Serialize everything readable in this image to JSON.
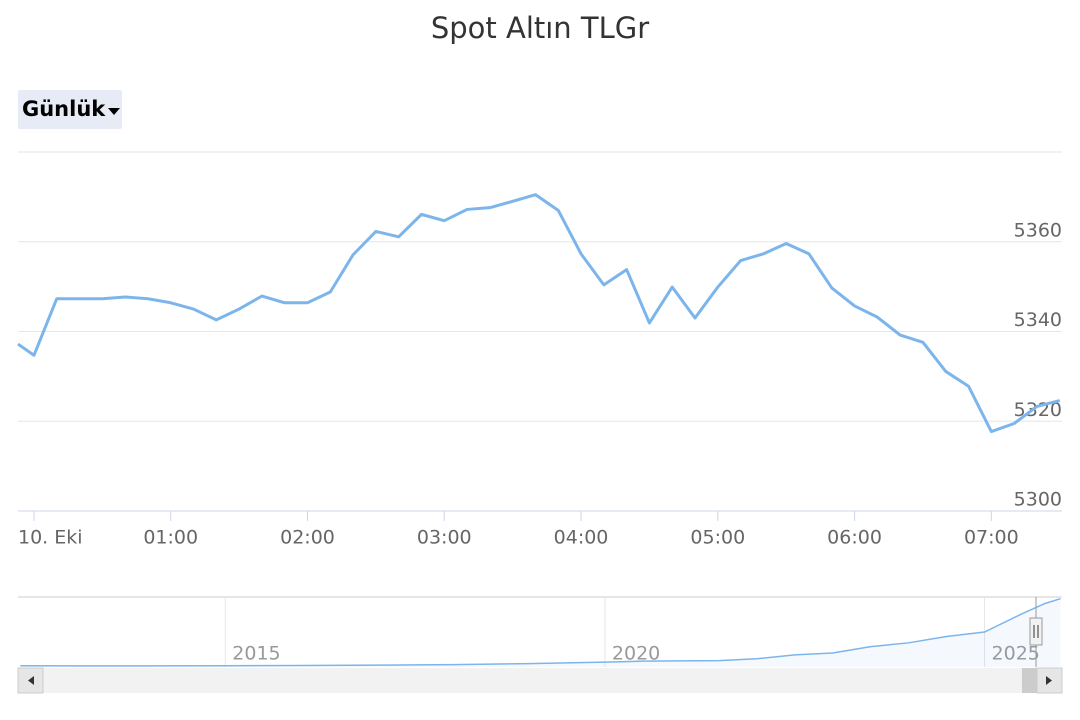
{
  "controls": {
    "period": "Günlük"
  },
  "chart_data": {
    "type": "line",
    "title": "Spot Altın TLGr",
    "x": [
      -7,
      0,
      10,
      20,
      30,
      40,
      50,
      60,
      70,
      80,
      90,
      100,
      110,
      120,
      130,
      140,
      150,
      160,
      170,
      180,
      190,
      200,
      210,
      220,
      230,
      240,
      250,
      260,
      270,
      280,
      290,
      300,
      310,
      320,
      330,
      340,
      350,
      360,
      370,
      380,
      390,
      400,
      410,
      420,
      430,
      440,
      450
    ],
    "series": [
      {
        "name": "Spot Altın TLGr",
        "color": "#7cb5ec",
        "values": [
          5337.2,
          5334.7,
          5347.3,
          5347.3,
          5347.3,
          5347.7,
          5347.3,
          5346.4,
          5345.0,
          5342.6,
          5345.0,
          5347.9,
          5346.4,
          5346.4,
          5348.8,
          5357.1,
          5362.3,
          5361.1,
          5366.1,
          5364.7,
          5367.2,
          5367.6,
          5369.0,
          5370.5,
          5367.0,
          5357.3,
          5350.4,
          5353.8,
          5341.9,
          5349.9,
          5343.0,
          5349.9,
          5355.8,
          5357.3,
          5359.6,
          5357.3,
          5349.7,
          5345.7,
          5343.2,
          5339.2,
          5337.6,
          5331.1,
          5327.8,
          5317.7,
          5319.5,
          5323.3,
          5324.6
        ]
      }
    ],
    "xlim": [
      -7,
      451
    ],
    "ylim": [
      5300,
      5380
    ],
    "xticks": [
      {
        "value": 0,
        "label": "10. Eki"
      },
      {
        "value": 60,
        "label": "01:00"
      },
      {
        "value": 120,
        "label": "02:00"
      },
      {
        "value": 180,
        "label": "03:00"
      },
      {
        "value": 240,
        "label": "04:00"
      },
      {
        "value": 300,
        "label": "05:00"
      },
      {
        "value": 360,
        "label": "06:00"
      },
      {
        "value": 420,
        "label": "07:00"
      }
    ],
    "yticks": [
      5300,
      5320,
      5340,
      5360
    ],
    "grid": true,
    "navigator": {
      "type": "area",
      "color": "#7cb5ec",
      "x": [
        2012.3,
        2013,
        2014,
        2015,
        2016,
        2017,
        2018,
        2019,
        2020,
        2020.5,
        2021,
        2021.5,
        2022,
        2022.5,
        2023,
        2023.5,
        2024,
        2024.5,
        2025,
        2025.5,
        2025.8,
        2026
      ],
      "values": [
        95,
        90,
        90,
        100,
        120,
        150,
        190,
        270,
        380,
        460,
        480,
        500,
        650,
        950,
        1100,
        1600,
        1900,
        2400,
        2750,
        4200,
        5000,
        5370
      ],
      "xlim": [
        2012.27,
        2026.02
      ],
      "ylim": [
        0,
        5500
      ],
      "xticks": [
        2015,
        2020,
        2025
      ]
    }
  }
}
